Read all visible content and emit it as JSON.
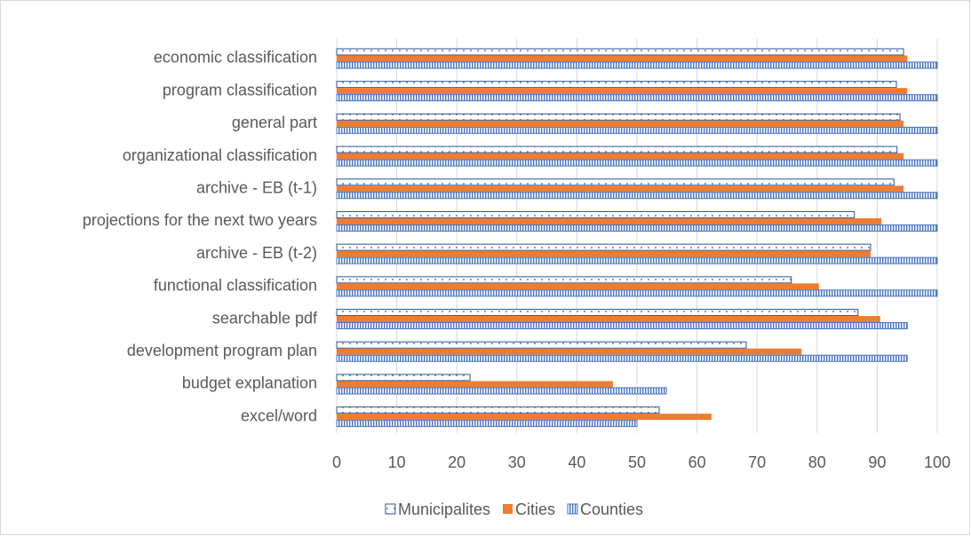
{
  "chart_data": {
    "type": "bar",
    "orientation": "horizontal",
    "categories": [
      "economic classification",
      "program classification",
      "general part",
      "organizational classification",
      "archive - EB (t-1)",
      "projections for the next two years",
      "archive - EB (t-2)",
      "functional classification",
      "searchable pdf",
      "development program plan",
      "budget explanation",
      "excel/word"
    ],
    "series": [
      {
        "name": "Municipalites",
        "color": "#2f5597",
        "pattern": "dots",
        "values": [
          94.4,
          93.2,
          93.8,
          93.3,
          92.8,
          86.2,
          88.9,
          75.7,
          86.8,
          68.2,
          22.2,
          53.7
        ]
      },
      {
        "name": "Cities",
        "color": "#ed7d31",
        "pattern": "solid",
        "values": [
          95,
          95,
          94.4,
          94.4,
          94.4,
          90.7,
          88.9,
          80.3,
          90.5,
          77.4,
          46,
          62.4
        ]
      },
      {
        "name": "Counties",
        "color": "#4472c4",
        "pattern": "vlines",
        "values": [
          100,
          100,
          100,
          100,
          100,
          100,
          100,
          100,
          95,
          95,
          54.9,
          50
        ]
      }
    ],
    "xlim": [
      0,
      100
    ],
    "xticks": [
      0,
      10,
      20,
      30,
      40,
      50,
      60,
      70,
      80,
      90,
      100
    ],
    "grid": true,
    "legend": "bottom"
  }
}
